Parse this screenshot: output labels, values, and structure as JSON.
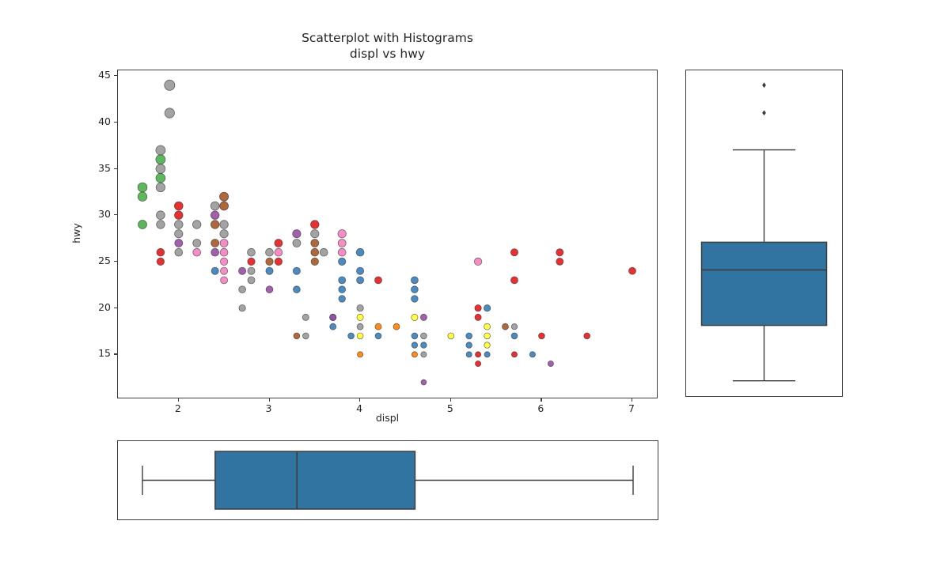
{
  "figure": {
    "title_line1": "Scatterplot with Histograms",
    "title_line2": "displ vs hwy",
    "xlabel": "displ",
    "ylabel": "hwy",
    "background": "#ffffff",
    "spine_color": "#3d3d3d",
    "text_color": "#262626"
  },
  "chart_data": {
    "type": "scatter",
    "title": "Scatterplot with Histograms displ vs hwy",
    "xlabel": "displ",
    "ylabel": "hwy",
    "xlim": [
      1.33,
      7.27
    ],
    "ylim": [
      10.35,
      45.6
    ],
    "xticks": [
      2,
      3,
      4,
      5,
      6,
      7
    ],
    "yticks": [
      15,
      20,
      25,
      30,
      35,
      40,
      45
    ],
    "grid": false,
    "legend": "none",
    "marker_edge_color": "#1f1f1f",
    "marker_fill_opacity": 0.9,
    "series": [
      {
        "name": "green",
        "color": "#4daf4a",
        "points": [
          [
            1.6,
            33,
            5.9
          ],
          [
            1.6,
            32,
            5.8
          ],
          [
            1.6,
            29,
            5.5
          ],
          [
            1.8,
            36,
            6.0
          ],
          [
            1.8,
            34,
            5.9
          ]
        ]
      },
      {
        "name": "gray",
        "color": "#999999",
        "points": [
          [
            1.9,
            44,
            6.6
          ],
          [
            1.9,
            41,
            6.2
          ],
          [
            1.8,
            37,
            6.0
          ],
          [
            1.8,
            35,
            5.9
          ],
          [
            1.8,
            33,
            5.7
          ],
          [
            1.8,
            30,
            5.4
          ],
          [
            1.8,
            29,
            5.3
          ],
          [
            2.0,
            29,
            5.3
          ],
          [
            2.0,
            28,
            5.2
          ],
          [
            2.0,
            26,
            4.9
          ],
          [
            2.2,
            29,
            5.3
          ],
          [
            2.2,
            27,
            5.0
          ],
          [
            2.4,
            31,
            5.4
          ],
          [
            2.5,
            29,
            5.3
          ],
          [
            2.5,
            28,
            5.2
          ],
          [
            2.7,
            22,
            4.4
          ],
          [
            2.7,
            20,
            4.2
          ],
          [
            2.8,
            26,
            4.9
          ],
          [
            2.8,
            24,
            4.6
          ],
          [
            2.8,
            23,
            4.5
          ],
          [
            3.0,
            26,
            4.9
          ],
          [
            3.3,
            27,
            5.0
          ],
          [
            3.4,
            19,
            4.1
          ],
          [
            3.4,
            17,
            3.9
          ],
          [
            3.5,
            28,
            5.2
          ],
          [
            3.6,
            26,
            4.9
          ],
          [
            4.0,
            20,
            4.2
          ],
          [
            4.0,
            18,
            4.0
          ],
          [
            4.7,
            17,
            3.9
          ],
          [
            4.7,
            15,
            3.6
          ],
          [
            5.7,
            18,
            3.7
          ]
        ]
      },
      {
        "name": "red",
        "color": "#e41a1c",
        "points": [
          [
            1.8,
            26,
            4.9
          ],
          [
            1.8,
            25,
            4.7
          ],
          [
            2.0,
            31,
            5.4
          ],
          [
            2.0,
            30,
            5.3
          ],
          [
            2.8,
            25,
            4.7
          ],
          [
            3.1,
            27,
            5.0
          ],
          [
            3.1,
            25,
            4.7
          ],
          [
            3.5,
            29,
            5.3
          ],
          [
            4.2,
            23,
            4.5
          ],
          [
            5.3,
            20,
            4.2
          ],
          [
            5.3,
            19,
            4.1
          ],
          [
            5.3,
            15,
            3.6
          ],
          [
            5.3,
            14,
            3.6
          ],
          [
            5.7,
            26,
            4.6
          ],
          [
            5.7,
            23,
            4.5
          ],
          [
            5.7,
            15,
            3.6
          ],
          [
            6.0,
            17,
            3.9
          ],
          [
            6.2,
            26,
            4.6
          ],
          [
            6.2,
            25,
            4.5
          ],
          [
            6.5,
            17,
            3.9
          ],
          [
            7.0,
            24,
            4.5
          ]
        ]
      },
      {
        "name": "blue",
        "color": "#377eb8",
        "points": [
          [
            2.4,
            24,
            4.6
          ],
          [
            3.0,
            24,
            4.6
          ],
          [
            3.3,
            24,
            4.6
          ],
          [
            3.3,
            22,
            4.4
          ],
          [
            3.7,
            19,
            4.1
          ],
          [
            3.7,
            18,
            4.0
          ],
          [
            3.8,
            25,
            4.7
          ],
          [
            3.8,
            23,
            4.5
          ],
          [
            3.8,
            22,
            4.4
          ],
          [
            3.8,
            21,
            4.3
          ],
          [
            3.9,
            17,
            3.9
          ],
          [
            4.0,
            26,
            4.9
          ],
          [
            4.0,
            24,
            4.6
          ],
          [
            4.0,
            23,
            4.5
          ],
          [
            4.2,
            17,
            3.9
          ],
          [
            4.6,
            23,
            4.5
          ],
          [
            4.6,
            22,
            4.4
          ],
          [
            4.6,
            21,
            4.3
          ],
          [
            4.6,
            17,
            3.9
          ],
          [
            4.6,
            16,
            3.8
          ],
          [
            4.7,
            16,
            3.8
          ],
          [
            5.2,
            17,
            3.9
          ],
          [
            5.2,
            16,
            3.8
          ],
          [
            5.2,
            15,
            3.6
          ],
          [
            5.4,
            20,
            4.2
          ],
          [
            5.4,
            15,
            3.6
          ],
          [
            5.7,
            17,
            3.9
          ],
          [
            5.9,
            15,
            3.6
          ]
        ]
      },
      {
        "name": "purple",
        "color": "#984ea3",
        "points": [
          [
            2.0,
            27,
            5.0
          ],
          [
            2.4,
            30,
            5.3
          ],
          [
            2.4,
            26,
            4.9
          ],
          [
            2.7,
            24,
            4.6
          ],
          [
            3.0,
            22,
            4.4
          ],
          [
            3.3,
            28,
            5.2
          ],
          [
            3.7,
            19,
            4.1
          ],
          [
            4.7,
            19,
            4.1
          ],
          [
            4.7,
            12,
            3.4
          ],
          [
            6.1,
            14,
            3.6
          ]
        ]
      },
      {
        "name": "orange",
        "color": "#ff7f00",
        "points": [
          [
            4.0,
            15,
            3.6
          ],
          [
            4.2,
            18,
            4.0
          ],
          [
            4.4,
            18,
            4.0
          ],
          [
            4.6,
            15,
            3.6
          ]
        ]
      },
      {
        "name": "yellow",
        "color": "#ffff33",
        "points": [
          [
            4.0,
            19,
            4.1
          ],
          [
            4.0,
            17,
            3.9
          ],
          [
            4.6,
            19,
            4.1
          ],
          [
            5.0,
            17,
            3.9
          ],
          [
            5.4,
            18,
            4.0
          ],
          [
            5.4,
            17,
            3.9
          ],
          [
            5.4,
            16,
            3.8
          ]
        ]
      },
      {
        "name": "brown",
        "color": "#a65628",
        "points": [
          [
            2.4,
            29,
            5.3
          ],
          [
            2.4,
            27,
            5.0
          ],
          [
            2.5,
            32,
            5.6
          ],
          [
            2.5,
            31,
            5.5
          ],
          [
            3.0,
            25,
            4.7
          ],
          [
            3.3,
            17,
            3.9
          ],
          [
            3.5,
            27,
            5.0
          ],
          [
            3.5,
            26,
            4.9
          ],
          [
            3.5,
            25,
            4.7
          ],
          [
            5.6,
            18,
            4.0
          ]
        ]
      },
      {
        "name": "pink",
        "color": "#f781bf",
        "points": [
          [
            2.2,
            26,
            4.9
          ],
          [
            2.5,
            27,
            5.0
          ],
          [
            2.5,
            26,
            4.9
          ],
          [
            2.5,
            25,
            4.7
          ],
          [
            2.5,
            24,
            4.6
          ],
          [
            2.5,
            23,
            4.5
          ],
          [
            3.1,
            26,
            4.9
          ],
          [
            3.8,
            28,
            5.2
          ],
          [
            3.8,
            27,
            5.0
          ],
          [
            3.8,
            26,
            4.9
          ],
          [
            5.3,
            25,
            4.7
          ]
        ]
      }
    ],
    "marginal_boxplots": {
      "box_fill_color": "#3274a1",
      "box_line_color": "#3d3d3d",
      "hwy": {
        "orient": "vertical",
        "min": 12,
        "q1": 18,
        "median": 24,
        "q3": 27,
        "max": 37,
        "outliers": [
          41,
          44
        ]
      },
      "displ": {
        "orient": "horizontal",
        "min": 1.6,
        "q1": 2.4,
        "median": 3.3,
        "q3": 4.6,
        "max": 7.0,
        "outliers": []
      }
    }
  }
}
